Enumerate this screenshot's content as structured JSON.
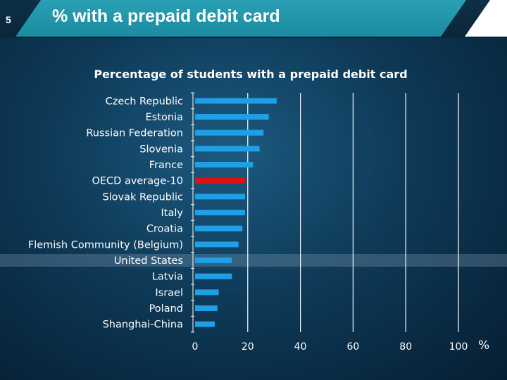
{
  "slide": {
    "number": "5",
    "title": "% with a prepaid debit card"
  },
  "colors": {
    "bar": "#1e9fe6",
    "highlight_bar": "#e01010",
    "title_band": "#1f93a8"
  },
  "chart_data": {
    "type": "bar",
    "orientation": "horizontal",
    "title": "Percentage of students with a prepaid debit card",
    "xlabel": "%",
    "ylabel": "",
    "xlim": [
      0,
      100
    ],
    "x_ticks": [
      "0",
      "20",
      "40",
      "60",
      "80",
      "100"
    ],
    "categories": [
      "Czech Republic",
      "Estonia",
      "Russian Federation",
      "Slovenia",
      "France",
      "OECD average-10",
      "Slovak Republic",
      "Italy",
      "Croatia",
      "Flemish Community (Belgium)",
      "United States",
      "Latvia",
      "Israel",
      "Poland",
      "Shanghai-China"
    ],
    "values": [
      31,
      28,
      26,
      24.5,
      22,
      19,
      19,
      19,
      18,
      16.5,
      14,
      14,
      9,
      8.5,
      7.5
    ],
    "highlight": "OECD average-10",
    "grid": true,
    "legend": "none"
  }
}
